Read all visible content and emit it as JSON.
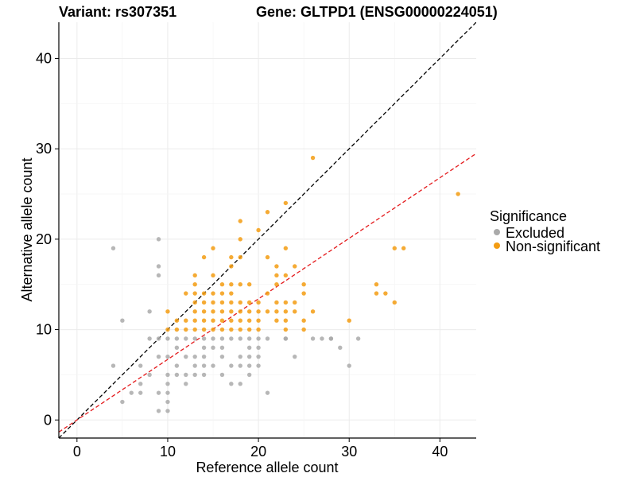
{
  "chart_data": {
    "type": "scatter",
    "title_left": "Variant: rs307351",
    "title_right": "Gene: GLTPD1 (ENSG00000224051)",
    "xlabel": "Reference allele count",
    "ylabel": "Alternative allele count",
    "xlim": [
      -2,
      44
    ],
    "ylim": [
      -2,
      44
    ],
    "x_ticks": [
      0,
      10,
      20,
      30,
      40
    ],
    "y_ticks": [
      0,
      10,
      20,
      30,
      40
    ],
    "grid": true,
    "legend": {
      "title": "Significance",
      "position": "right",
      "entries": [
        {
          "label": "Excluded",
          "color": "#aaaaaa"
        },
        {
          "label": "Non-significant",
          "color": "#f39c12"
        }
      ]
    },
    "reference_lines": [
      {
        "slope": 1.0,
        "intercept": 0,
        "color": "#000000",
        "dash": "dashed"
      },
      {
        "slope": 0.67,
        "intercept": 0,
        "color": "#e41a1c",
        "dash": "dashed"
      }
    ],
    "series": [
      {
        "name": "Excluded",
        "color": "#aaaaaa",
        "points": [
          [
            4,
            19
          ],
          [
            4,
            6
          ],
          [
            5,
            11
          ],
          [
            5,
            2
          ],
          [
            6,
            3
          ],
          [
            7,
            6
          ],
          [
            7,
            3
          ],
          [
            7,
            4
          ],
          [
            8,
            12
          ],
          [
            8,
            9
          ],
          [
            8,
            5
          ],
          [
            9,
            20
          ],
          [
            9,
            17
          ],
          [
            9,
            16
          ],
          [
            9,
            9
          ],
          [
            9,
            7
          ],
          [
            9,
            3
          ],
          [
            9,
            1
          ],
          [
            10,
            9
          ],
          [
            10,
            7
          ],
          [
            10,
            5
          ],
          [
            10,
            4
          ],
          [
            10,
            3
          ],
          [
            10,
            2
          ],
          [
            10,
            1
          ],
          [
            11,
            9
          ],
          [
            11,
            8
          ],
          [
            11,
            6
          ],
          [
            11,
            5
          ],
          [
            12,
            9
          ],
          [
            12,
            7
          ],
          [
            12,
            5
          ],
          [
            12,
            4
          ],
          [
            13,
            9
          ],
          [
            13,
            7
          ],
          [
            13,
            6
          ],
          [
            13,
            5
          ],
          [
            14,
            9
          ],
          [
            14,
            8
          ],
          [
            14,
            7
          ],
          [
            14,
            6
          ],
          [
            14,
            5
          ],
          [
            15,
            9
          ],
          [
            15,
            8
          ],
          [
            15,
            6
          ],
          [
            16,
            9
          ],
          [
            16,
            8
          ],
          [
            16,
            7
          ],
          [
            16,
            5
          ],
          [
            17,
            9
          ],
          [
            17,
            6
          ],
          [
            17,
            4
          ],
          [
            18,
            9
          ],
          [
            18,
            7
          ],
          [
            18,
            6
          ],
          [
            18,
            4
          ],
          [
            19,
            9
          ],
          [
            19,
            8
          ],
          [
            19,
            7
          ],
          [
            19,
            6
          ],
          [
            19,
            5
          ],
          [
            20,
            9
          ],
          [
            20,
            8
          ],
          [
            20,
            7
          ],
          [
            20,
            6
          ],
          [
            21,
            9
          ],
          [
            21,
            3
          ],
          [
            23,
            9
          ],
          [
            24,
            7
          ],
          [
            26,
            9
          ],
          [
            27,
            9
          ],
          [
            28,
            9
          ],
          [
            29,
            8
          ],
          [
            30,
            6
          ],
          [
            31,
            9
          ],
          [
            28,
            9
          ],
          [
            23,
            9
          ]
        ]
      },
      {
        "name": "Non-significant",
        "color": "#f39c12",
        "points": [
          [
            10,
            12
          ],
          [
            10,
            10
          ],
          [
            11,
            11
          ],
          [
            11,
            10
          ],
          [
            12,
            14
          ],
          [
            12,
            11
          ],
          [
            12,
            10
          ],
          [
            13,
            16
          ],
          [
            13,
            15
          ],
          [
            13,
            14
          ],
          [
            13,
            13
          ],
          [
            13,
            12
          ],
          [
            13,
            11
          ],
          [
            13,
            10
          ],
          [
            14,
            18
          ],
          [
            14,
            14
          ],
          [
            14,
            13
          ],
          [
            14,
            12
          ],
          [
            14,
            11
          ],
          [
            14,
            10
          ],
          [
            15,
            19
          ],
          [
            15,
            16
          ],
          [
            15,
            14
          ],
          [
            15,
            13
          ],
          [
            15,
            12
          ],
          [
            15,
            11
          ],
          [
            15,
            10
          ],
          [
            16,
            15
          ],
          [
            16,
            14
          ],
          [
            16,
            13
          ],
          [
            16,
            12
          ],
          [
            16,
            11
          ],
          [
            16,
            10
          ],
          [
            17,
            18
          ],
          [
            17,
            17
          ],
          [
            17,
            15
          ],
          [
            17,
            14
          ],
          [
            17,
            13
          ],
          [
            17,
            12
          ],
          [
            17,
            11
          ],
          [
            17,
            10
          ],
          [
            18,
            22
          ],
          [
            18,
            20
          ],
          [
            18,
            18
          ],
          [
            18,
            15
          ],
          [
            18,
            13
          ],
          [
            18,
            12
          ],
          [
            18,
            11
          ],
          [
            18,
            10
          ],
          [
            19,
            15
          ],
          [
            19,
            13
          ],
          [
            19,
            12
          ],
          [
            19,
            11
          ],
          [
            19,
            10
          ],
          [
            20,
            21
          ],
          [
            20,
            13
          ],
          [
            20,
            12
          ],
          [
            20,
            11
          ],
          [
            20,
            10
          ],
          [
            21,
            23
          ],
          [
            21,
            18
          ],
          [
            21,
            14
          ],
          [
            21,
            12
          ],
          [
            22,
            17
          ],
          [
            22,
            16
          ],
          [
            22,
            15
          ],
          [
            22,
            13
          ],
          [
            22,
            12
          ],
          [
            22,
            11
          ],
          [
            23,
            24
          ],
          [
            23,
            19
          ],
          [
            23,
            16
          ],
          [
            23,
            13
          ],
          [
            23,
            12
          ],
          [
            23,
            11
          ],
          [
            23,
            10
          ],
          [
            24,
            17
          ],
          [
            24,
            13
          ],
          [
            24,
            12
          ],
          [
            25,
            15
          ],
          [
            25,
            14
          ],
          [
            25,
            11
          ],
          [
            25,
            10
          ],
          [
            26,
            29
          ],
          [
            26,
            12
          ],
          [
            30,
            11
          ],
          [
            33,
            15
          ],
          [
            33,
            14
          ],
          [
            34,
            14
          ],
          [
            35,
            19
          ],
          [
            35,
            13
          ],
          [
            36,
            19
          ],
          [
            42,
            25
          ]
        ]
      }
    ]
  }
}
